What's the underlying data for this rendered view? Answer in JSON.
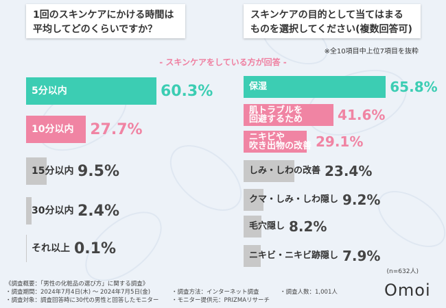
{
  "chart_data": [
    {
      "type": "bar",
      "orientation": "horizontal",
      "title": [
        "1回のスキンケアにかける時間は",
        "平均してどのくらいですか？"
      ],
      "categories": [
        "5分以内",
        "10分以内",
        "15分以内",
        "30分以内",
        "それ以上"
      ],
      "values": [
        60.3,
        27.7,
        9.5,
        2.4,
        0.1
      ],
      "value_labels": [
        "60.3%",
        "27.7%",
        "9.5%",
        "2.4%",
        "0.1%"
      ],
      "colors": [
        "#3ccdb3",
        "#f084a3",
        "#c8c8c8",
        "#c8c8c8",
        "#c8c8c8"
      ]
    },
    {
      "type": "bar",
      "orientation": "horizontal",
      "title": [
        "スキンケアの目的として当てはまる",
        "ものを選択してください(複数回答可)"
      ],
      "categories": [
        "保湿",
        "肌トラブルを\n回避するため",
        "ニキビや\n吹き出物の改善",
        "しみ・しわの改善",
        "クマ・しみ・しわ隠し",
        "毛穴隠し",
        "ニキビ・ニキビ跡隠し"
      ],
      "values": [
        65.8,
        41.6,
        29.1,
        23.4,
        9.2,
        8.2,
        7.9
      ],
      "value_labels": [
        "65.8%",
        "41.6%",
        "29.1%",
        "23.4%",
        "9.2%",
        "8.2%",
        "7.9%"
      ],
      "colors": [
        "#3ccdb3",
        "#f084a3",
        "#f084a3",
        "#c8c8c8",
        "#c8c8c8",
        "#c8c8c8",
        "#c8c8c8"
      ]
    }
  ],
  "page": {
    "subtitle": "- スキンケアをしている方が回答 -",
    "note": "※全10項目中上位7項目を抜粋",
    "sample_size": "(n=632人)",
    "logo": "Omoi",
    "footer": {
      "heading": "《調査概要：「男性の化粧品の選び方」に関する調査》",
      "items": [
        "調査期間：2024年7月4日(木) ～ 2024年7月5日(金)",
        "調査対象：調査回答時に30代の男性と回答したモニター",
        "調査方法：インターネット調査",
        "モニター提供元：PRIZMAリサーチ",
        "調査人数：1,001人"
      ]
    }
  }
}
